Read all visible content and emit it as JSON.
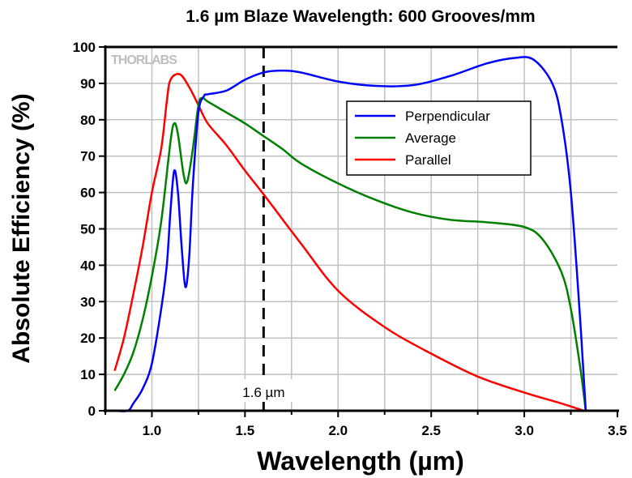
{
  "chart_data": {
    "type": "line",
    "title": "1.6 µm Blaze Wavelength: 600 Grooves/mm",
    "xlabel": "Wavelength (µm)",
    "ylabel": "Absolute Efficiency (%)",
    "xlim": [
      0.75,
      3.5
    ],
    "ylim": [
      0,
      100
    ],
    "xticks": [
      "1.0",
      "1.5",
      "2.0",
      "2.5",
      "3.0",
      "3.5"
    ],
    "xtick_values": [
      1.0,
      1.5,
      2.0,
      2.5,
      3.0,
      3.5
    ],
    "yticks": [
      "0",
      "10",
      "20",
      "30",
      "40",
      "50",
      "60",
      "70",
      "80",
      "90",
      "100"
    ],
    "ytick_values": [
      0,
      10,
      20,
      30,
      40,
      50,
      60,
      70,
      80,
      90,
      100
    ],
    "grid": true,
    "legend_position": "upper-right",
    "annotation": {
      "x": 1.6,
      "label": "1.6 µm",
      "style": "dashed vertical line"
    },
    "watermark": "THORLABS",
    "series": [
      {
        "name": "Perpendicular",
        "color": "#0000ff",
        "x": [
          0.8,
          0.87,
          0.9,
          0.95,
          1.0,
          1.05,
          1.08,
          1.1,
          1.12,
          1.14,
          1.16,
          1.18,
          1.2,
          1.22,
          1.25,
          1.28,
          1.3,
          1.4,
          1.5,
          1.6,
          1.7,
          1.8,
          2.0,
          2.2,
          2.4,
          2.6,
          2.8,
          2.95,
          3.05,
          3.15,
          3.2,
          3.25,
          3.3,
          3.33
        ],
        "y": [
          0,
          0,
          2,
          6,
          13,
          28,
          40,
          55,
          66,
          60,
          45,
          34,
          42,
          62,
          82,
          86.5,
          87,
          88,
          91,
          93,
          93.5,
          93,
          90.5,
          89.3,
          89.5,
          92,
          95.5,
          97,
          96.5,
          90,
          80,
          60,
          25,
          0
        ]
      },
      {
        "name": "Average",
        "color": "#008000",
        "x": [
          0.8,
          0.85,
          0.9,
          0.95,
          1.0,
          1.05,
          1.1,
          1.12,
          1.14,
          1.17,
          1.19,
          1.22,
          1.25,
          1.27,
          1.3,
          1.4,
          1.5,
          1.6,
          1.7,
          1.8,
          2.0,
          2.2,
          2.4,
          2.6,
          2.8,
          3.0,
          3.1,
          3.2,
          3.25,
          3.3,
          3.33
        ],
        "y": [
          5.5,
          10,
          16,
          25,
          37,
          52,
          74,
          79,
          76,
          65,
          63,
          72,
          84,
          86,
          85,
          82,
          79,
          75.5,
          72,
          68,
          62.5,
          58,
          54.5,
          52.5,
          51.8,
          50.5,
          47,
          38,
          28,
          12,
          0
        ]
      },
      {
        "name": "Parallel",
        "color": "#ff0000",
        "x": [
          0.8,
          0.85,
          0.9,
          0.95,
          1.0,
          1.05,
          1.08,
          1.1,
          1.15,
          1.2,
          1.25,
          1.3,
          1.4,
          1.5,
          1.6,
          1.8,
          2.0,
          2.25,
          2.5,
          2.75,
          3.0,
          3.2,
          3.32
        ],
        "y": [
          11,
          20,
          32,
          45,
          60,
          72,
          85,
          91,
          92.5,
          89,
          84,
          79,
          73,
          66,
          59.5,
          46,
          33,
          23,
          15.7,
          9.4,
          5,
          2,
          0
        ]
      }
    ]
  }
}
